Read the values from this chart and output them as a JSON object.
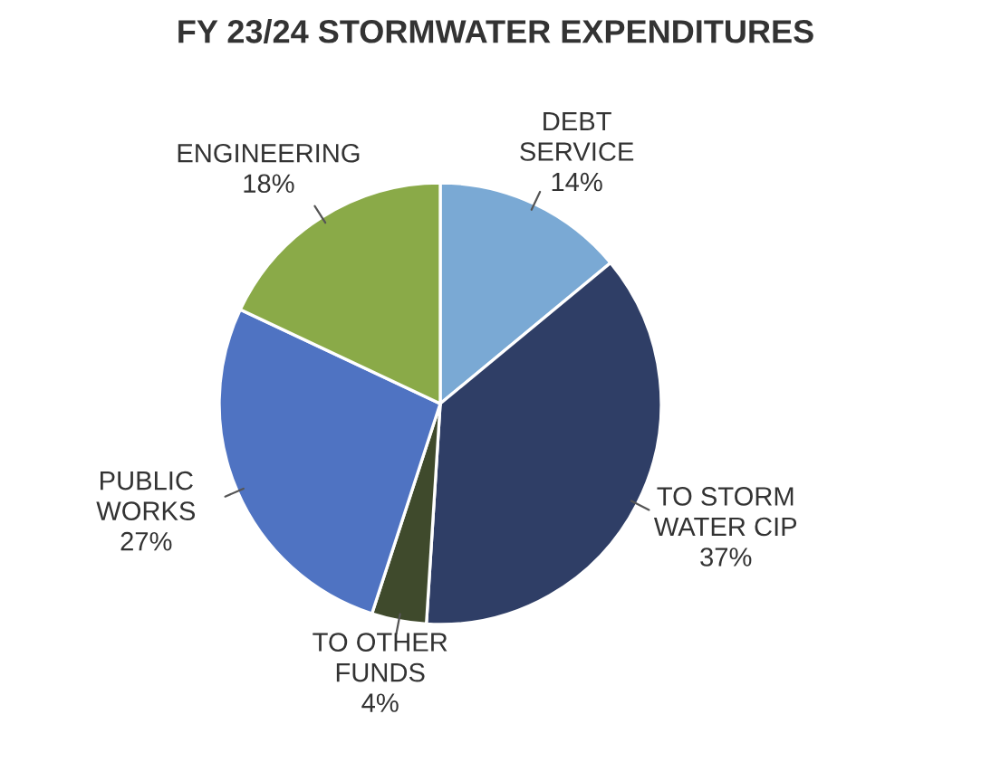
{
  "chart_data": {
    "type": "pie",
    "title": "FY 23/24 STORMWATER EXPENDITURES",
    "categories": [
      "DEBT\nSERVICE",
      "TO STORM\nWATER CIP",
      "TO OTHER\nFUNDS",
      "PUBLIC\nWORKS",
      "ENGINEERING"
    ],
    "values": [
      14,
      37,
      4,
      27,
      18
    ],
    "value_labels": [
      "14%",
      "37%",
      "4%",
      "27%",
      "18%"
    ],
    "colors": [
      "#7aa9d4",
      "#2f3e66",
      "#3f4a2c",
      "#4f73c2",
      "#8aaa48"
    ]
  }
}
